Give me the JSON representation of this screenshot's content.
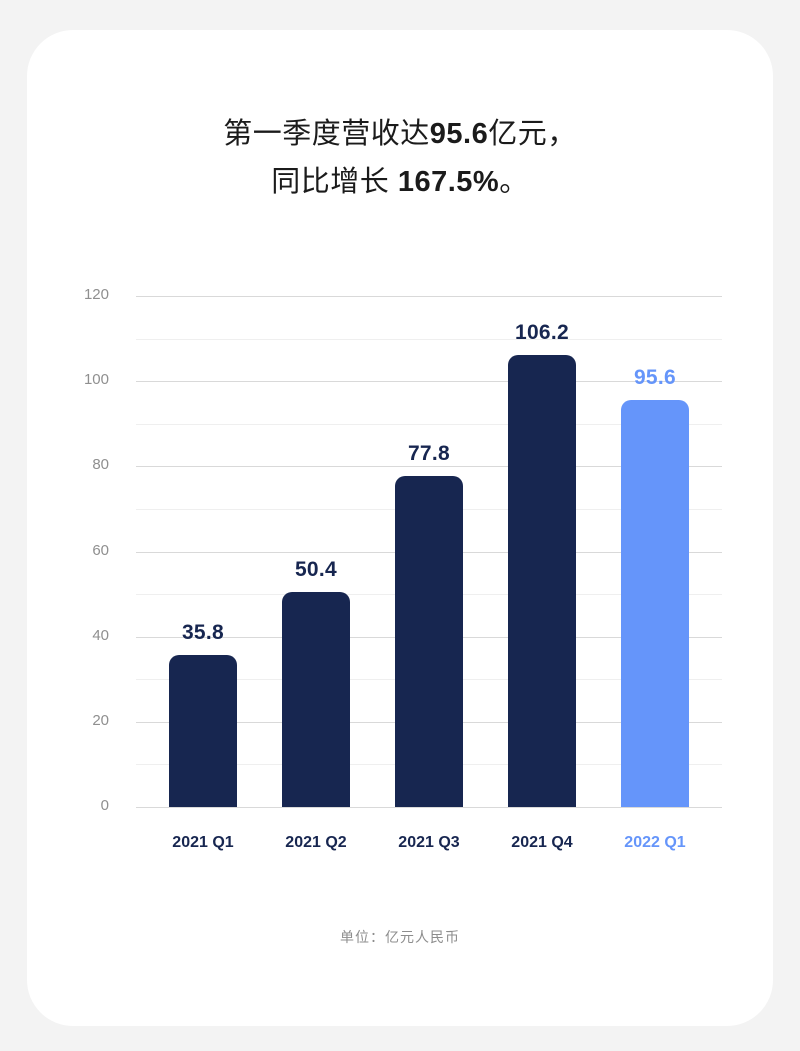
{
  "title": {
    "line1_prefix": "第一季度营收达",
    "line1_value": "95.6",
    "line1_suffix": "亿元，",
    "line2_prefix": "同比增长 ",
    "line2_value": "167.5%",
    "line2_suffix": "。"
  },
  "unit_label": "单位：亿元人民币",
  "colors": {
    "primary_bar": "#172650",
    "highlight_bar": "#6595fa",
    "background": "#f3f3f3",
    "card": "#ffffff"
  },
  "chart_data": {
    "type": "bar",
    "title": "第一季度营收达95.6亿元，同比增长 167.5%。",
    "xlabel": "",
    "ylabel": "",
    "unit": "亿元人民币",
    "categories": [
      "2021 Q1",
      "2021 Q2",
      "2021 Q3",
      "2021 Q4",
      "2022 Q1"
    ],
    "values": [
      35.8,
      50.4,
      77.8,
      106.2,
      95.6
    ],
    "value_labels": [
      "35.8",
      "50.4",
      "77.8",
      "106.2",
      "95.6"
    ],
    "highlight_index": 4,
    "ylim": [
      0,
      120
    ],
    "yticks": [
      "0",
      "20",
      "40",
      "60",
      "80",
      "100",
      "120"
    ],
    "ytick_values": [
      0,
      20,
      40,
      60,
      80,
      100,
      120
    ],
    "grid": true,
    "minor_grid_step": 10,
    "legend": null
  }
}
